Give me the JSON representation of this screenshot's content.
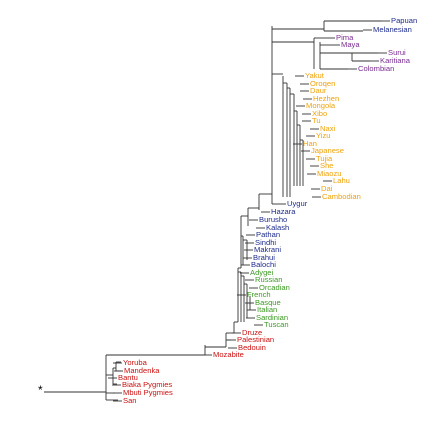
{
  "colors": {
    "oceania": "#1f2d8c",
    "america": "#7b2c92",
    "east_asia": "#f0a30a",
    "central_south_asia": "#1f2d8c",
    "europe": "#3c9a24",
    "middle_east": "#cc1111",
    "africa": "#cc1111",
    "branch": "#333333",
    "root_marker": "#000000"
  },
  "root_marker": "*",
  "populations": [
    {
      "name": "Papuan",
      "region": "oceania"
    },
    {
      "name": "Melanesian",
      "region": "oceania"
    },
    {
      "name": "Pima",
      "region": "america"
    },
    {
      "name": "Maya",
      "region": "america"
    },
    {
      "name": "Surui",
      "region": "america"
    },
    {
      "name": "Karitiana",
      "region": "america"
    },
    {
      "name": "Colombian",
      "region": "america"
    },
    {
      "name": "Yakut",
      "region": "east_asia"
    },
    {
      "name": "Oroqen",
      "region": "east_asia"
    },
    {
      "name": "Daur",
      "region": "east_asia"
    },
    {
      "name": "Hezhen",
      "region": "east_asia"
    },
    {
      "name": "Mongola",
      "region": "east_asia"
    },
    {
      "name": "Xibo",
      "region": "east_asia"
    },
    {
      "name": "Tu",
      "region": "east_asia"
    },
    {
      "name": "Naxi",
      "region": "east_asia"
    },
    {
      "name": "Yizu",
      "region": "east_asia"
    },
    {
      "name": "Han",
      "region": "east_asia"
    },
    {
      "name": "Japanese",
      "region": "east_asia"
    },
    {
      "name": "Tujia",
      "region": "east_asia"
    },
    {
      "name": "She",
      "region": "east_asia"
    },
    {
      "name": "Miaozu",
      "region": "east_asia"
    },
    {
      "name": "Lahu",
      "region": "east_asia"
    },
    {
      "name": "Dai",
      "region": "east_asia"
    },
    {
      "name": "Cambodian",
      "region": "east_asia"
    },
    {
      "name": "Uygur",
      "region": "central_south_asia"
    },
    {
      "name": "Hazara",
      "region": "central_south_asia"
    },
    {
      "name": "Burusho",
      "region": "central_south_asia"
    },
    {
      "name": "Kalash",
      "region": "central_south_asia"
    },
    {
      "name": "Pathan",
      "region": "central_south_asia"
    },
    {
      "name": "Sindhi",
      "region": "central_south_asia"
    },
    {
      "name": "Makrani",
      "region": "central_south_asia"
    },
    {
      "name": "Brahui",
      "region": "central_south_asia"
    },
    {
      "name": "Balochi",
      "region": "central_south_asia"
    },
    {
      "name": "Adygei",
      "region": "europe"
    },
    {
      "name": "Russian",
      "region": "europe"
    },
    {
      "name": "Orcadian",
      "region": "europe"
    },
    {
      "name": "French",
      "region": "europe"
    },
    {
      "name": "Basque",
      "region": "europe"
    },
    {
      "name": "Italian",
      "region": "europe"
    },
    {
      "name": "Sardinian",
      "region": "europe"
    },
    {
      "name": "Tuscan",
      "region": "europe"
    },
    {
      "name": "Druze",
      "region": "middle_east"
    },
    {
      "name": "Palestinian",
      "region": "middle_east"
    },
    {
      "name": "Bedouin",
      "region": "middle_east"
    },
    {
      "name": "Mozabite",
      "region": "middle_east"
    },
    {
      "name": "Yoruba",
      "region": "africa"
    },
    {
      "name": "Mandenka",
      "region": "africa"
    },
    {
      "name": "Bantu",
      "region": "africa"
    },
    {
      "name": "Biaka Pygmies",
      "region": "africa"
    },
    {
      "name": "Mbuti Pygmies",
      "region": "africa"
    },
    {
      "name": "San",
      "region": "africa"
    }
  ]
}
